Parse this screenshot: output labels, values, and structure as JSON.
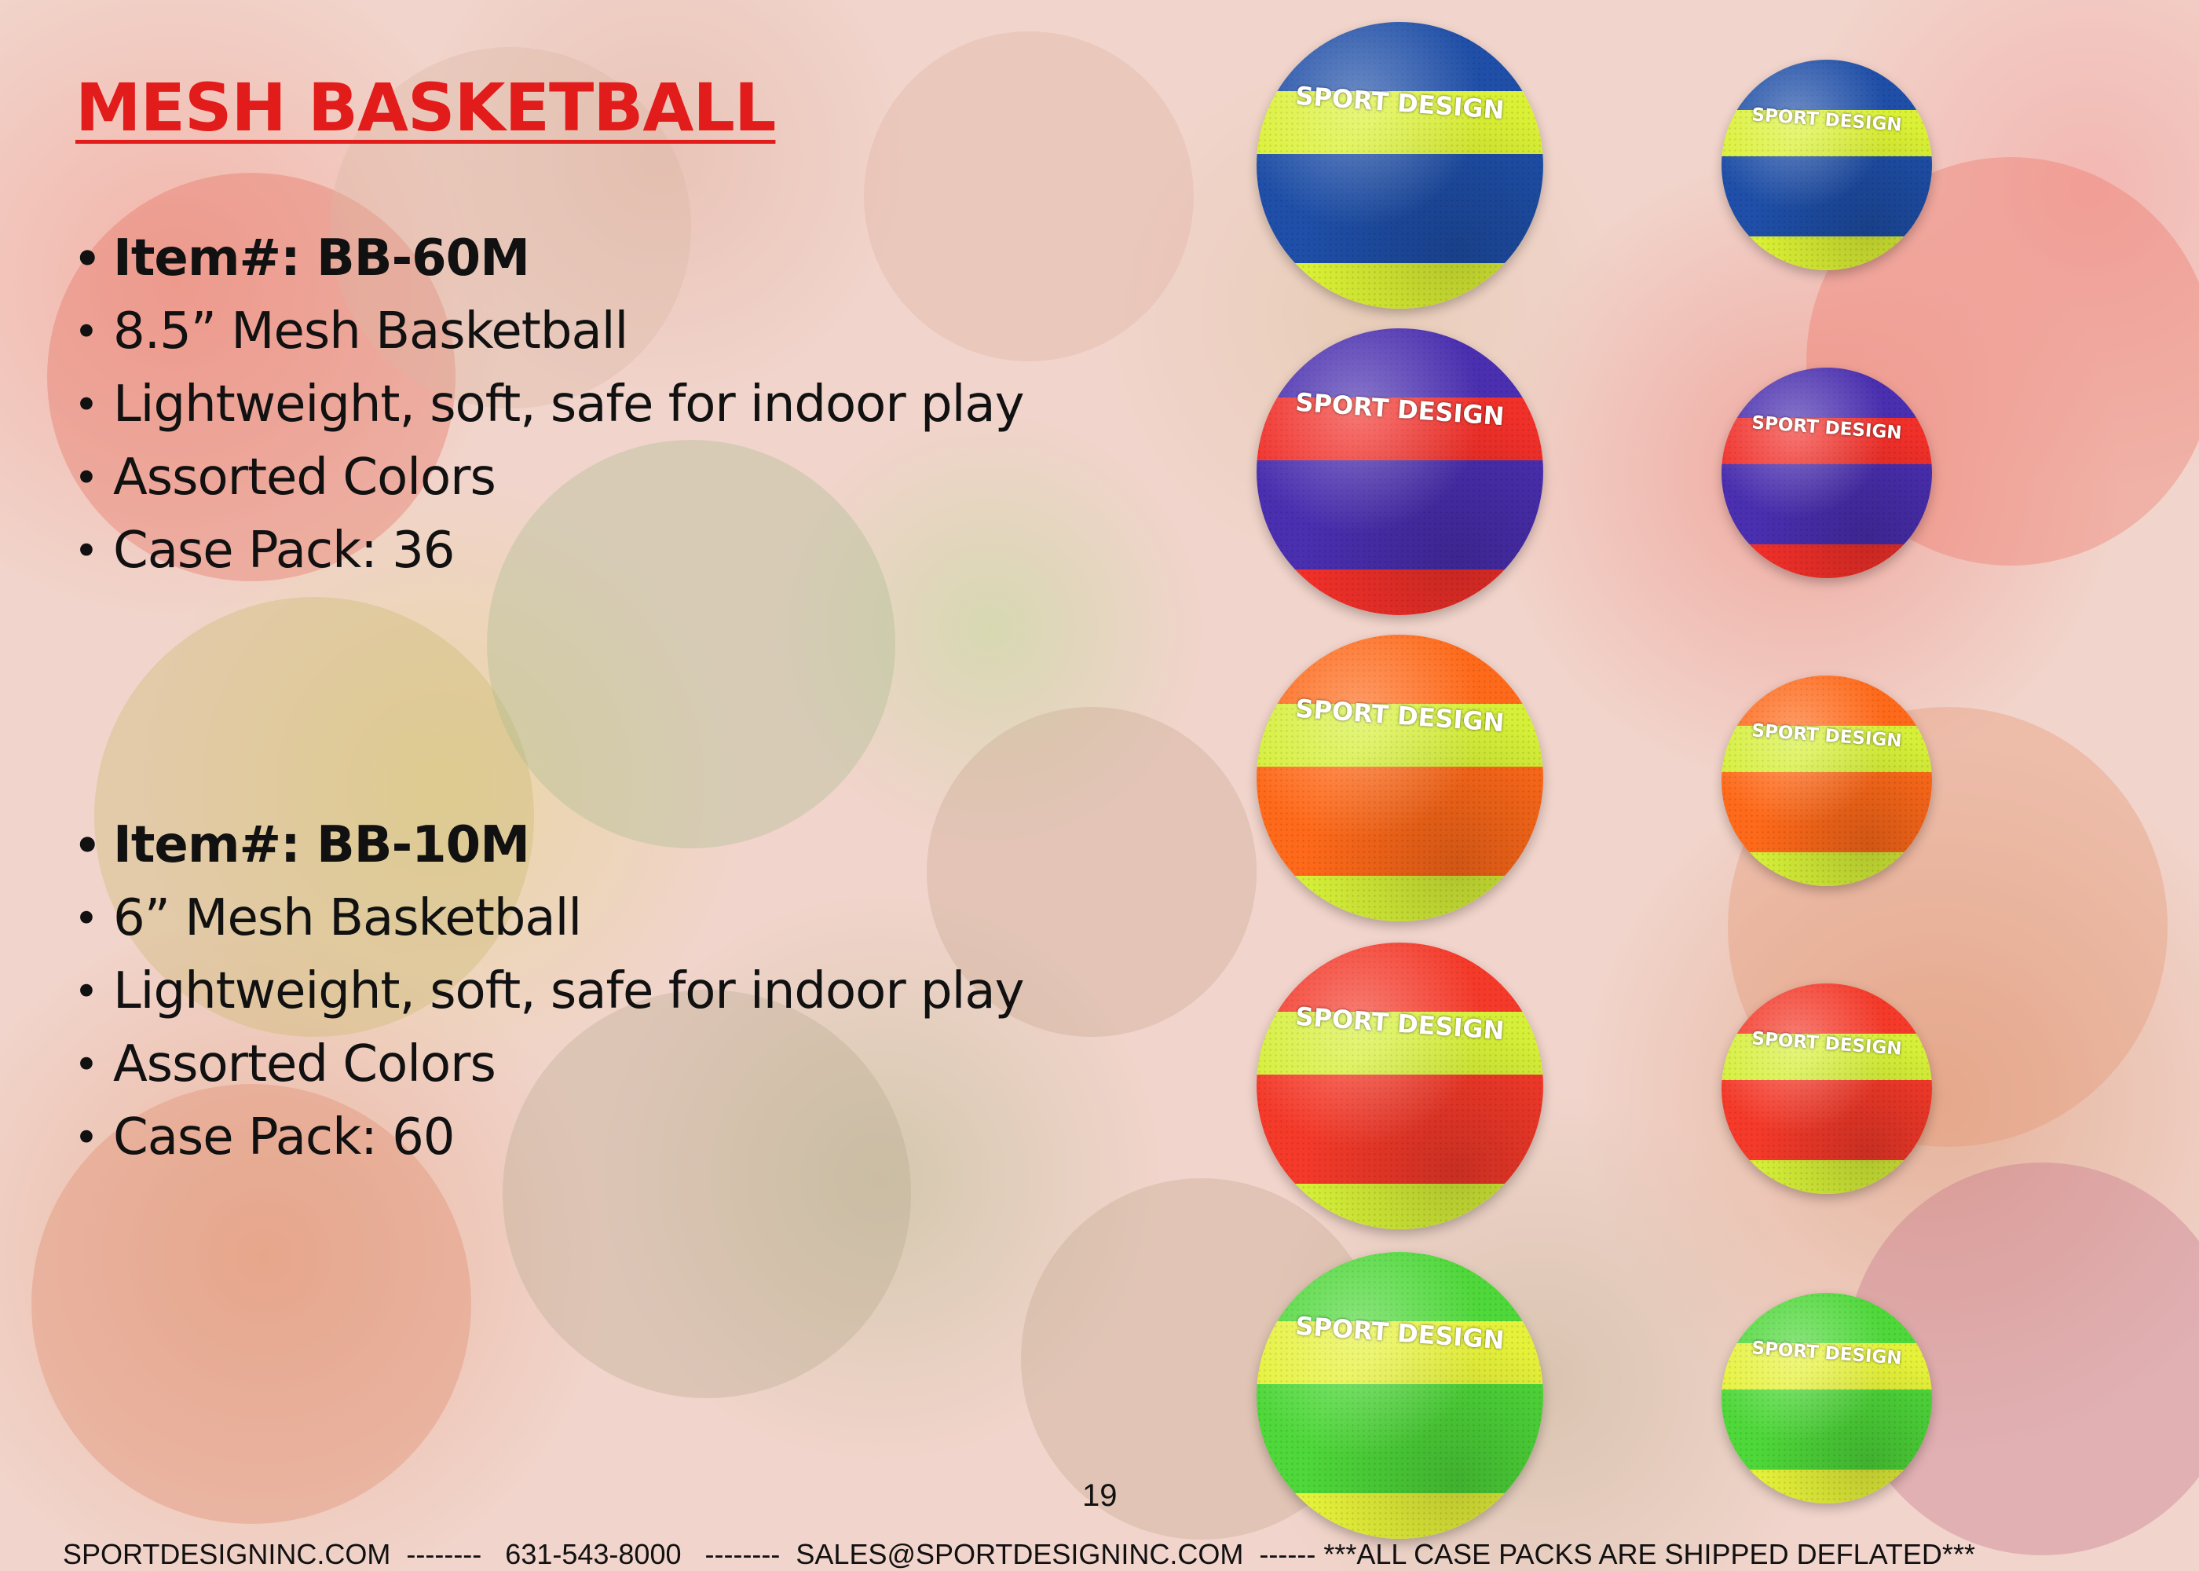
{
  "title": "MESH BASKETBALL",
  "products": [
    {
      "item": "Item#: BB-60M",
      "size": "8.5” Mesh Basketball",
      "feature": "Lightweight, soft, safe for indoor play",
      "colors": "Assorted Colors",
      "case_pack": "Case Pack: 36"
    },
    {
      "item": "Item#: BB-10M",
      "size": "6” Mesh Basketball",
      "feature": "Lightweight, soft, safe for indoor play",
      "colors": "Assorted Colors",
      "case_pack": "Case Pack: 60"
    }
  ],
  "ball_logo": "SPORT DESIGN",
  "ball_colorways": [
    {
      "cap": "#1f4fa8",
      "upper": "#dbf135",
      "lower": "#1f4fa8",
      "base": "#dbf135"
    },
    {
      "cap": "#4a2fb0",
      "upper": "#f2302a",
      "lower": "#4a2fb0",
      "base": "#f2302a"
    },
    {
      "cap": "#ff6a1a",
      "upper": "#d6ef38",
      "lower": "#ff6a1a",
      "base": "#d6ef38"
    },
    {
      "cap": "#f53a2a",
      "upper": "#d6ef38",
      "lower": "#f53a2a",
      "base": "#d6ef38"
    },
    {
      "cap": "#4fd83a",
      "upper": "#e6f23a",
      "lower": "#4fd83a",
      "base": "#e6f23a"
    }
  ],
  "page_number": "19",
  "footer": "SPORTDESIGNINC.COM  --------   631-543-8000   --------  SALES@SPORTDESIGNINC.COM  ------ ***ALL CASE PACKS ARE SHIPPED DEFLATED***"
}
